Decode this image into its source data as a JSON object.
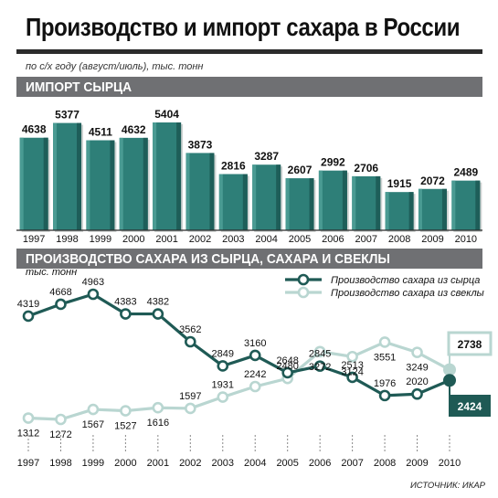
{
  "header": {
    "title": "Производство и импорт сахара в России",
    "subtitle": "по с/х году (август/июль), тыс. тонн"
  },
  "source": "ИСТОЧНИК: ИКАР",
  "colors": {
    "bar": "#2e7f78",
    "bar_dark": "#1e5e59",
    "bar_light": "#4a9b93",
    "raw_series": "#1f5a55",
    "beet_series": "#b9d6d1",
    "band": "#6f7073"
  },
  "chart_data": [
    {
      "type": "bar",
      "title": "ИМПОРТ СЫРЦА",
      "categories": [
        "1997",
        "1998",
        "1999",
        "2000",
        "2001",
        "2002",
        "2003",
        "2004",
        "2005",
        "2006",
        "2007",
        "2008",
        "2009",
        "2010"
      ],
      "values": [
        4638,
        5377,
        4511,
        4632,
        5404,
        3873,
        2816,
        3287,
        2607,
        2992,
        2706,
        1915,
        2072,
        2489
      ]
    },
    {
      "type": "line",
      "title": "ПРОИЗВОДСТВО САХАРА ИЗ СЫРЦА, САХАРА И СВЕКЛЫ",
      "ylabel": "тыс. тонн",
      "x": [
        "1997",
        "1998",
        "1999",
        "2000",
        "2001",
        "2002",
        "2003",
        "2004",
        "2005",
        "2006",
        "2007",
        "2008",
        "2009",
        "2010"
      ],
      "series": [
        {
          "name": "Производство сахара из сырца",
          "values": [
            4319,
            4668,
            4963,
            4383,
            4382,
            3562,
            2849,
            3160,
            2648,
            2845,
            2513,
            1976,
            2020,
            2424
          ]
        },
        {
          "name": "Производство сахара из свеклы",
          "values": [
            1312,
            1272,
            1567,
            1527,
            1616,
            1597,
            1931,
            2242,
            2480,
            3272,
            3124,
            3551,
            3249,
            2738
          ]
        }
      ],
      "legend": "top-right"
    }
  ]
}
